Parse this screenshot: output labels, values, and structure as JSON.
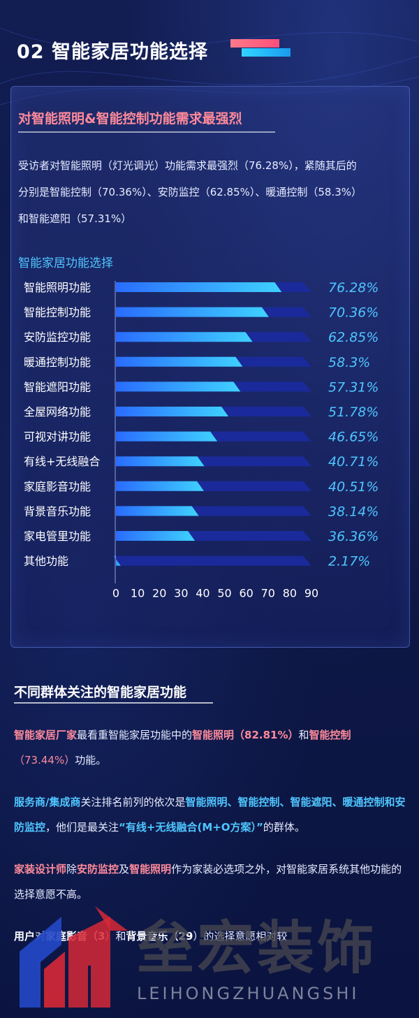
{
  "header": {
    "title": "02  智能家居功能选择"
  },
  "card": {
    "heading": "对智能照明&智能控制功能需求最强烈",
    "paragraph_lines": [
      "受访者对智能照明（灯光调光）功能需求最强烈（76.28%），紧随其后的",
      "分别是智能控制（70.36%）、安防监控（62.85%）、暖通控制（58.3%）",
      "和智能遮阳（57.31%）"
    ]
  },
  "chart_data": {
    "type": "bar",
    "orientation": "horizontal",
    "title": "智能家居功能选择",
    "categories": [
      "智能照明功能",
      "智能控制功能",
      "安防监控功能",
      "暖通控制功能",
      "智能遮阳功能",
      "全屋网络功能",
      "可视对讲功能",
      "有线+无线融合",
      "家庭影音功能",
      "背景音乐功能",
      "家电管里功能",
      "其他功能"
    ],
    "values": [
      76.28,
      70.36,
      62.85,
      58.3,
      57.31,
      51.78,
      46.65,
      40.71,
      40.51,
      38.14,
      36.36,
      2.17
    ],
    "value_labels": [
      "76.28%",
      "70.36%",
      "62.85%",
      "58.3%",
      "57.31%",
      "51.78%",
      "46.65%",
      "40.71%",
      "40.51%",
      "38.14%",
      "36.36%",
      "2.17%"
    ],
    "x_ticks": [
      "0",
      "10",
      "20",
      "30",
      "40",
      "50",
      "60",
      "70",
      "80",
      "90"
    ],
    "xlim": [
      0,
      90
    ],
    "grid": false,
    "colors": {
      "bar_fill": "#2a8cff",
      "bar_fill_light": "#3fd2ff",
      "track": "#1a2a9a",
      "label": "#4fc6ff"
    }
  },
  "section2": {
    "title": "不同群体关注的智能家居功能",
    "p1": {
      "a": "智能家居厂家",
      "b": "最看重智能家居功能中的",
      "c": "智能照明（82.81%）",
      "d": "和",
      "e": "智能控制",
      "f": "（73.44%）",
      "g": "功能。"
    },
    "p2": {
      "a": "服务商/集成商",
      "b": "关注排名前列的依次是",
      "c": "智能照明、智能控制、智能遮阳、暖通控制和安防监控",
      "d": "，他们是最关注",
      "e": "“有线+无线融合(M+O方案）”",
      "f": "的群体。"
    },
    "p3": {
      "a": "家装设计师",
      "b": "除",
      "c": "安防监控",
      "d": "及",
      "e": "智能照明",
      "f": "作为家装必选项之外，对智能家居系统其他功能的选择意愿不高。"
    },
    "p4": {
      "a": "用户",
      "b": "对",
      "c": "家庭影音（3",
      "d": "）和",
      "e": "背景音乐（29",
      "f": "）的选择意愿相对较"
    }
  },
  "watermark": {
    "cn": "垒宏装饰",
    "en": "LEIHONGZHUANGSHI",
    "logo_icon": "lh-logo-icon"
  }
}
